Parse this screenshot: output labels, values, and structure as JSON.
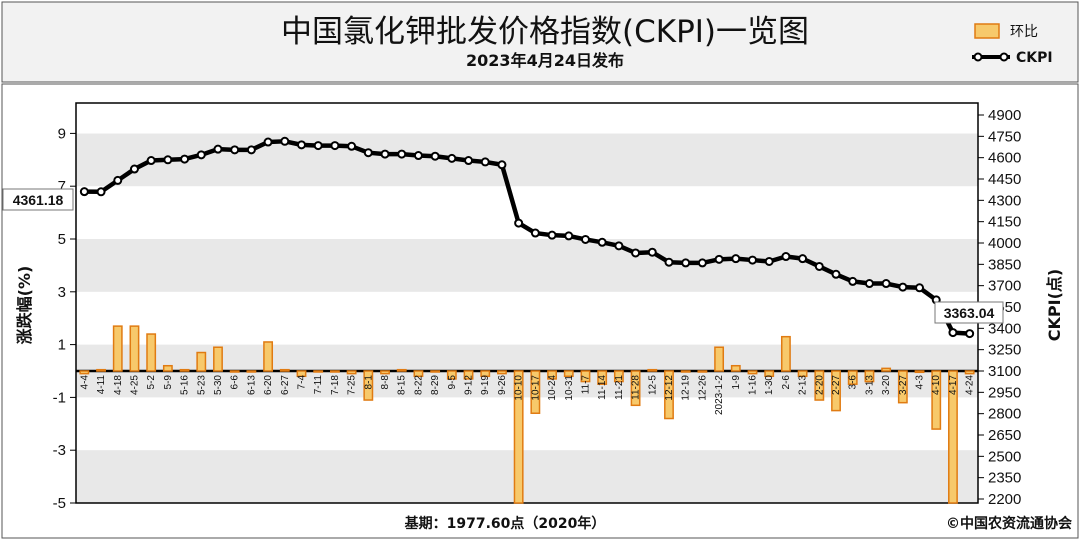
{
  "header": {
    "title": "中国氯化钾批发价格指数(CKPI)一览图",
    "subtitle": "2023年4月24日发布"
  },
  "legend": {
    "bar_label": "环比",
    "line_label": "CKPI"
  },
  "axes": {
    "left_label": "涨跌幅(%)",
    "right_label": "CKPI(点)",
    "left_ticks": [
      "9",
      "7",
      "5",
      "3",
      "1",
      "-1",
      "-3",
      "-5"
    ],
    "right_ticks": [
      "4900",
      "4750",
      "4600",
      "4450",
      "4300",
      "4150",
      "4000",
      "3850",
      "3700",
      "3550",
      "3400",
      "3250",
      "3100",
      "2950",
      "2800",
      "2650",
      "2500",
      "2350",
      "2200"
    ]
  },
  "footer": {
    "base_note": "基期：1977.60点（2020年）",
    "copyright": "©中国农资流通协会"
  },
  "callouts": {
    "start_value": "4361.18",
    "end_value": "3363.04"
  },
  "colors": {
    "bar_fill": "#f7c96b",
    "bar_edge": "#e07b12",
    "line": "#000000",
    "band": "#e8e8e8"
  },
  "chart_data": {
    "type": "bar+line",
    "title": "中国氯化钾批发价格指数(CKPI)一览图",
    "categories": [
      "4-4",
      "4-11",
      "4-18",
      "4-25",
      "5-2",
      "5-9",
      "5-16",
      "5-23",
      "5-30",
      "6-6",
      "6-13",
      "6-20",
      "6-27",
      "7-4",
      "7-11",
      "7-18",
      "7-25",
      "8-1",
      "8-8",
      "8-15",
      "8-22",
      "8-29",
      "9-5",
      "9-12",
      "9-19",
      "9-26",
      "10-10",
      "10-17",
      "10-24",
      "10-31",
      "11-7",
      "11-14",
      "11-21",
      "11-28",
      "12-5",
      "12-12",
      "12-19",
      "12-26",
      "2023-1-2",
      "1-9",
      "1-16",
      "1-30",
      "2-6",
      "2-13",
      "2-20",
      "2-27",
      "3-6",
      "3-13",
      "3-20",
      "3-27",
      "4-3",
      "4-10",
      "4-17",
      "4-24"
    ],
    "series": [
      {
        "name": "环比",
        "axis": "left",
        "kind": "bar",
        "values": [
          -0.1,
          0.05,
          1.7,
          1.7,
          1.4,
          0.2,
          0.05,
          0.7,
          0.9,
          0.0,
          0.0,
          1.1,
          0.05,
          -0.2,
          0.0,
          0.0,
          -0.1,
          -1.1,
          -0.1,
          0.05,
          -0.2,
          0.0,
          -0.3,
          -0.3,
          -0.2,
          -0.1,
          -5.0,
          -1.6,
          -0.3,
          -0.2,
          -0.4,
          -0.5,
          -0.4,
          -1.3,
          0.05,
          -1.8,
          0.0,
          0.0,
          0.9,
          0.2,
          -0.1,
          -0.2,
          1.3,
          -0.2,
          -1.1,
          -1.5,
          -0.5,
          -0.4,
          0.1,
          -1.2,
          -0.05,
          -2.2,
          -5.0,
          -0.1
        ]
      },
      {
        "name": "CKPI",
        "axis": "right",
        "kind": "line",
        "values": [
          4361.18,
          4360,
          4440,
          4520,
          4580,
          4585,
          4590,
          4620,
          4660,
          4655,
          4655,
          4710,
          4715,
          4690,
          4685,
          4685,
          4680,
          4635,
          4625,
          4625,
          4615,
          4610,
          4595,
          4580,
          4570,
          4550,
          4140,
          4070,
          4055,
          4050,
          4025,
          4005,
          3980,
          3930,
          3935,
          3865,
          3860,
          3860,
          3885,
          3890,
          3880,
          3870,
          3905,
          3890,
          3835,
          3780,
          3730,
          3715,
          3715,
          3690,
          3685,
          3600,
          3370,
          3363.04
        ]
      }
    ],
    "ylim_left": [
      -5.3,
      10
    ],
    "ylim_right": [
      2200,
      4900
    ],
    "grid": "horizontal bands",
    "legend": "top-right"
  }
}
